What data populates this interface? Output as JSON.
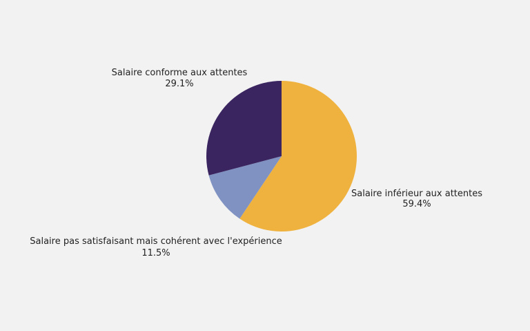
{
  "chart_data": {
    "type": "pie",
    "title": "",
    "start_angle_deg": 0,
    "direction": "clockwise",
    "slices": [
      {
        "label": "Salaire inférieur aux attentes",
        "value": 59.4,
        "value_label": "59.4%",
        "color": "#efb23f"
      },
      {
        "label": "Salaire pas satisfaisant mais cohérent avec l'expérience",
        "value": 11.5,
        "value_label": "11.5%",
        "color": "#7f92c2"
      },
      {
        "label": "Salaire conforme aux attentes",
        "value": 29.1,
        "value_label": "29.1%",
        "color": "#3a2560"
      }
    ],
    "legend": "none",
    "background": "#f2f2f2"
  }
}
